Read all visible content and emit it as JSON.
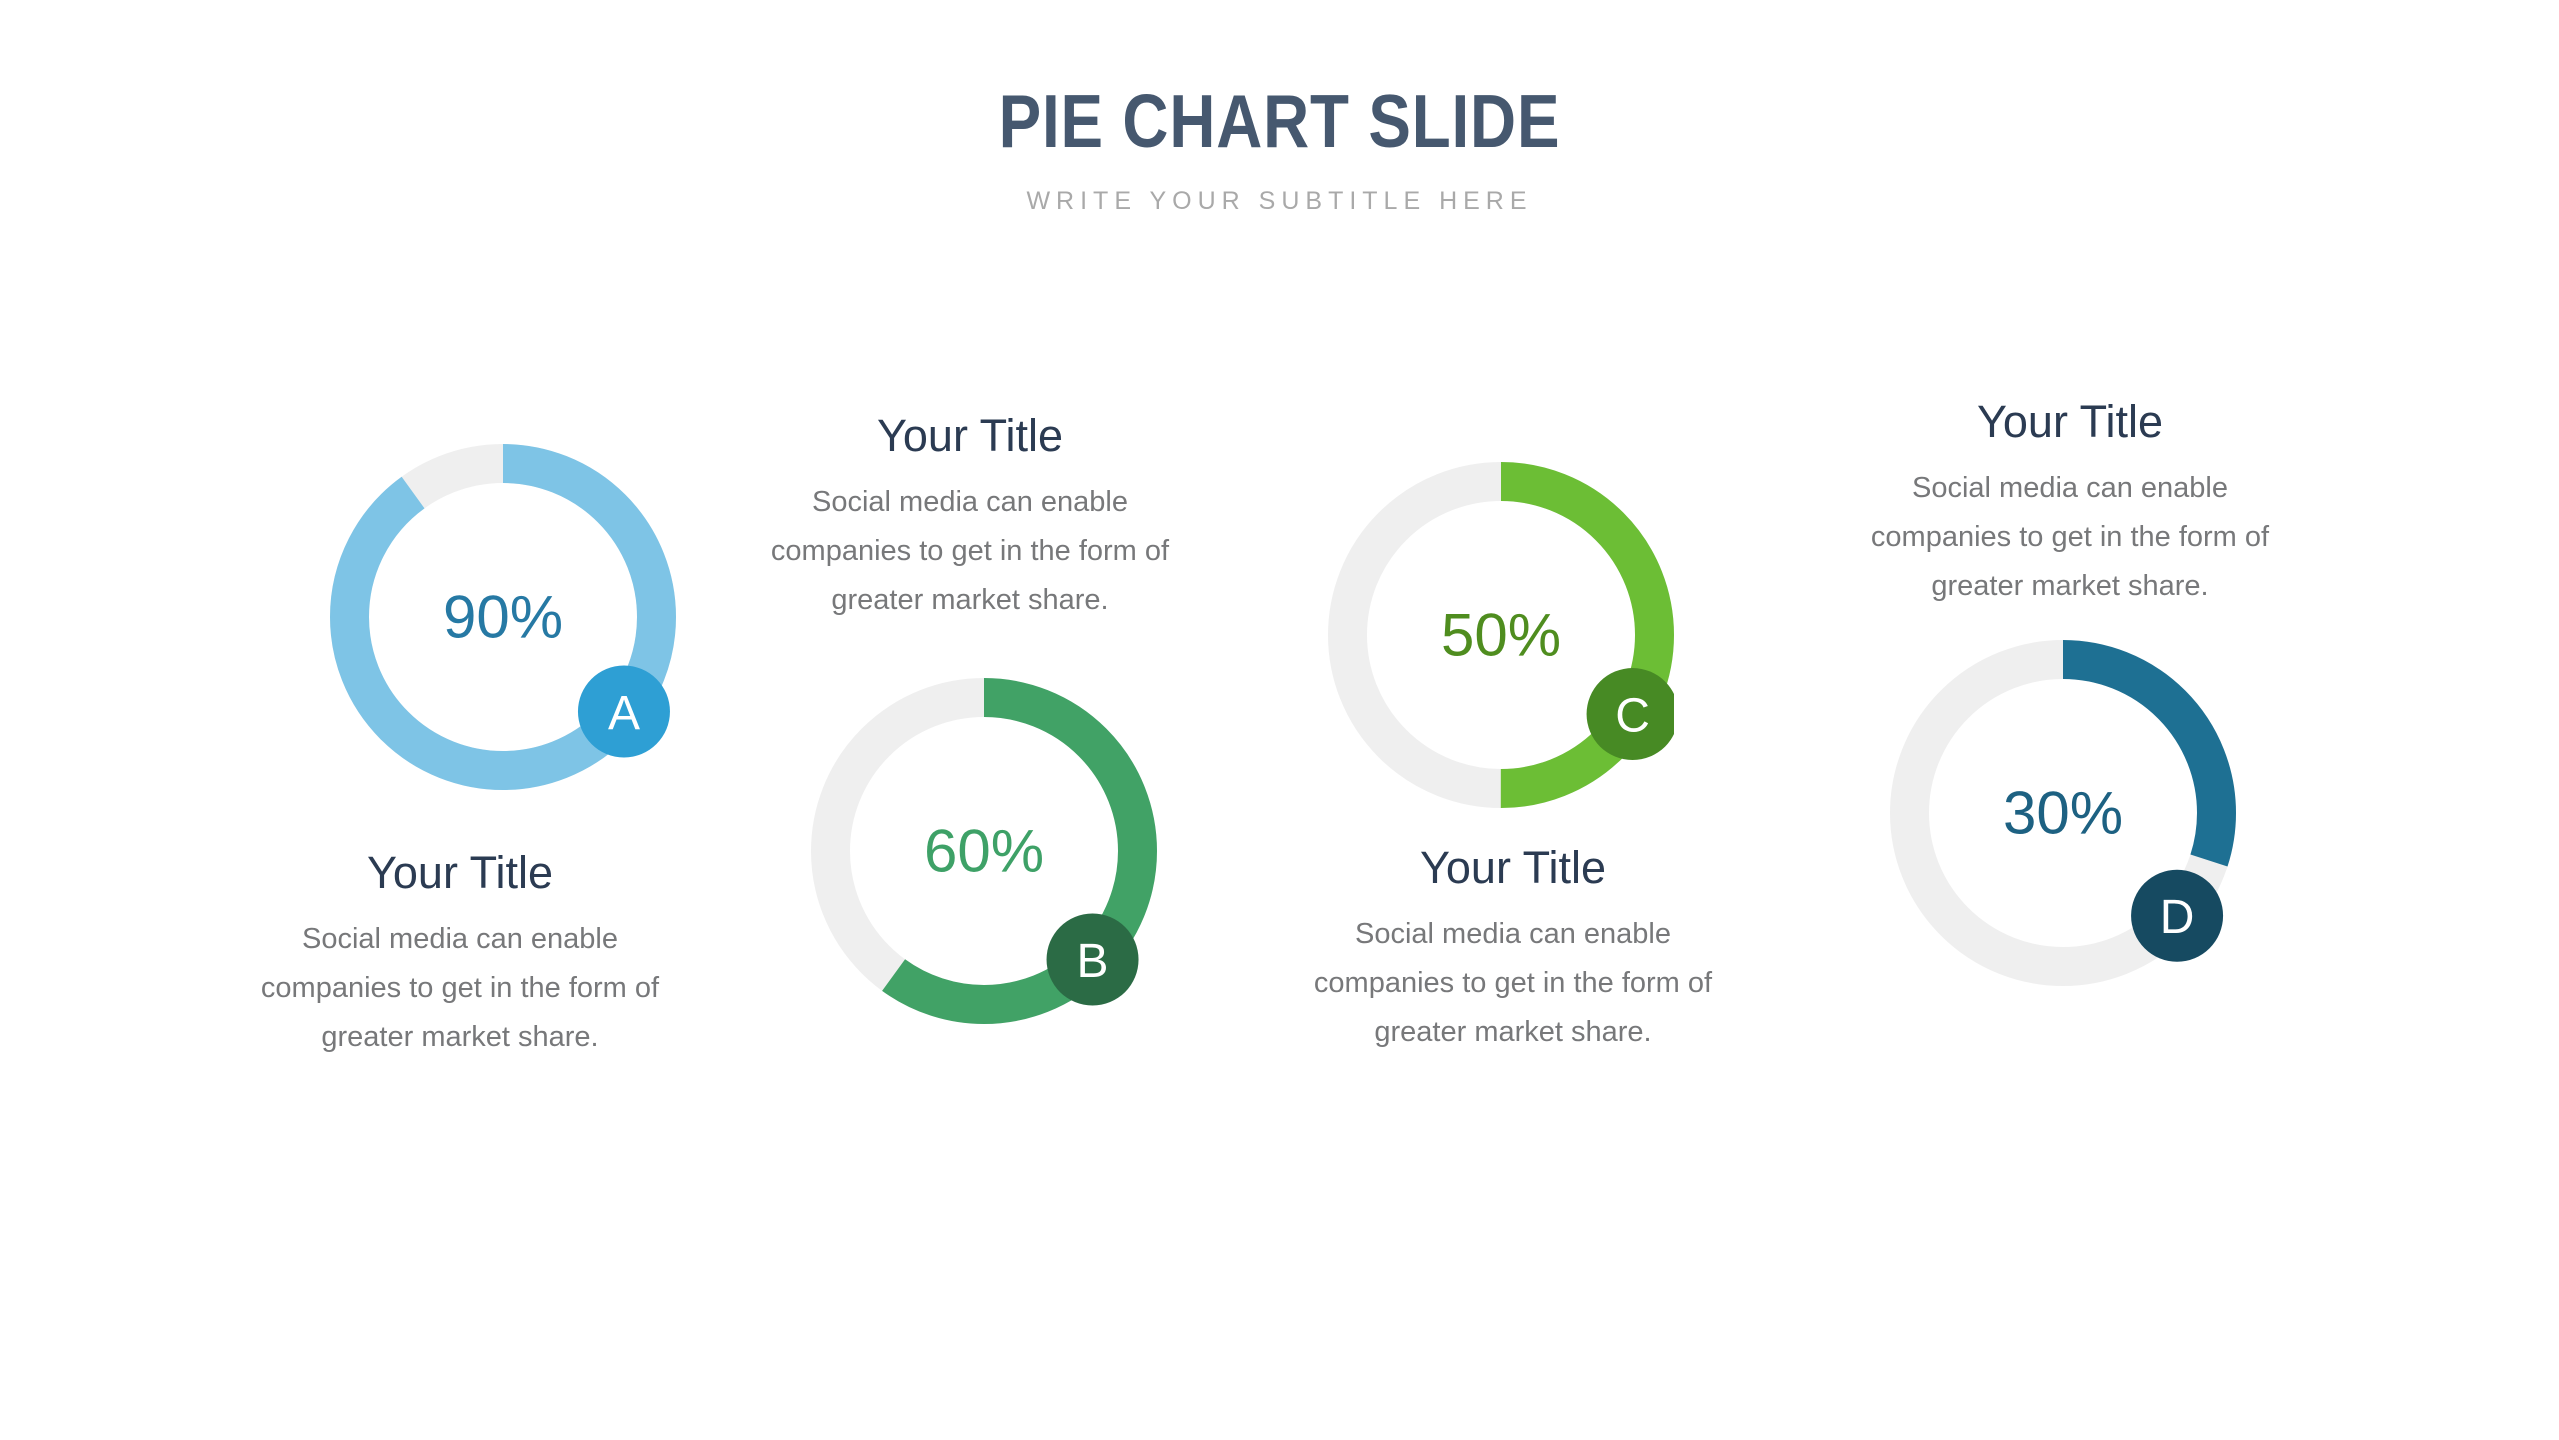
{
  "slide": {
    "title": "PIE CHART SLIDE",
    "subtitle": "WRITE YOUR SUBTITLE HERE",
    "background_color": "#FFFFFF",
    "title_color": "#46586F",
    "subtitle_color": "#A9A9A9"
  },
  "chart_data": [
    {
      "type": "pie",
      "variant": "donut",
      "badge": "A",
      "value": 90,
      "value_label": "90%",
      "title": "Your Title",
      "description_lines": [
        "Social media can enable",
        "companies to get in the form of",
        "greater market share."
      ],
      "segments": [
        {
          "name": "filled",
          "value": 90
        },
        {
          "name": "remainder",
          "value": 10
        }
      ],
      "start_angle_deg": 0,
      "direction": "clockwise",
      "ring_color": "#7EC4E6",
      "badge_color": "#2E9FD4",
      "value_color": "#2679A4",
      "track_color": "#EFEFEF",
      "badge_angle_deg": 128,
      "caption_position": "below"
    },
    {
      "type": "pie",
      "variant": "donut",
      "badge": "B",
      "value": 60,
      "value_label": "60%",
      "title": "Your Title",
      "description_lines": [
        "Social media can enable",
        "companies to get in the form of",
        "greater market share."
      ],
      "segments": [
        {
          "name": "filled",
          "value": 60
        },
        {
          "name": "remainder",
          "value": 40
        }
      ],
      "start_angle_deg": 0,
      "direction": "clockwise",
      "ring_color": "#41A266",
      "badge_color": "#2B6B45",
      "value_color": "#3EA167",
      "track_color": "#EFEFEF",
      "badge_angle_deg": 135,
      "caption_position": "above"
    },
    {
      "type": "pie",
      "variant": "donut",
      "badge": "C",
      "value": 50,
      "value_label": "50%",
      "title": "Your Title",
      "description_lines": [
        "Social media can enable",
        "companies to get in the form of",
        "greater market share."
      ],
      "segments": [
        {
          "name": "filled",
          "value": 50
        },
        {
          "name": "remainder",
          "value": 50
        }
      ],
      "start_angle_deg": 0,
      "direction": "clockwise",
      "ring_color": "#6CBE35",
      "badge_color": "#478A24",
      "value_color": "#4F8D1F",
      "track_color": "#EFEFEF",
      "badge_angle_deg": 121,
      "caption_position": "below"
    },
    {
      "type": "pie",
      "variant": "donut",
      "badge": "D",
      "value": 30,
      "value_label": "30%",
      "title": "Your Title",
      "description_lines": [
        "Social media can enable",
        "companies to get in the form of",
        "greater market share."
      ],
      "segments": [
        {
          "name": "filled",
          "value": 30
        },
        {
          "name": "remainder",
          "value": 70
        }
      ],
      "start_angle_deg": 0,
      "direction": "clockwise",
      "ring_color": "#1E7093",
      "badge_color": "#164A61",
      "value_color": "#1D6182",
      "track_color": "#EFEFEF",
      "badge_angle_deg": 132,
      "caption_position": "above"
    }
  ]
}
